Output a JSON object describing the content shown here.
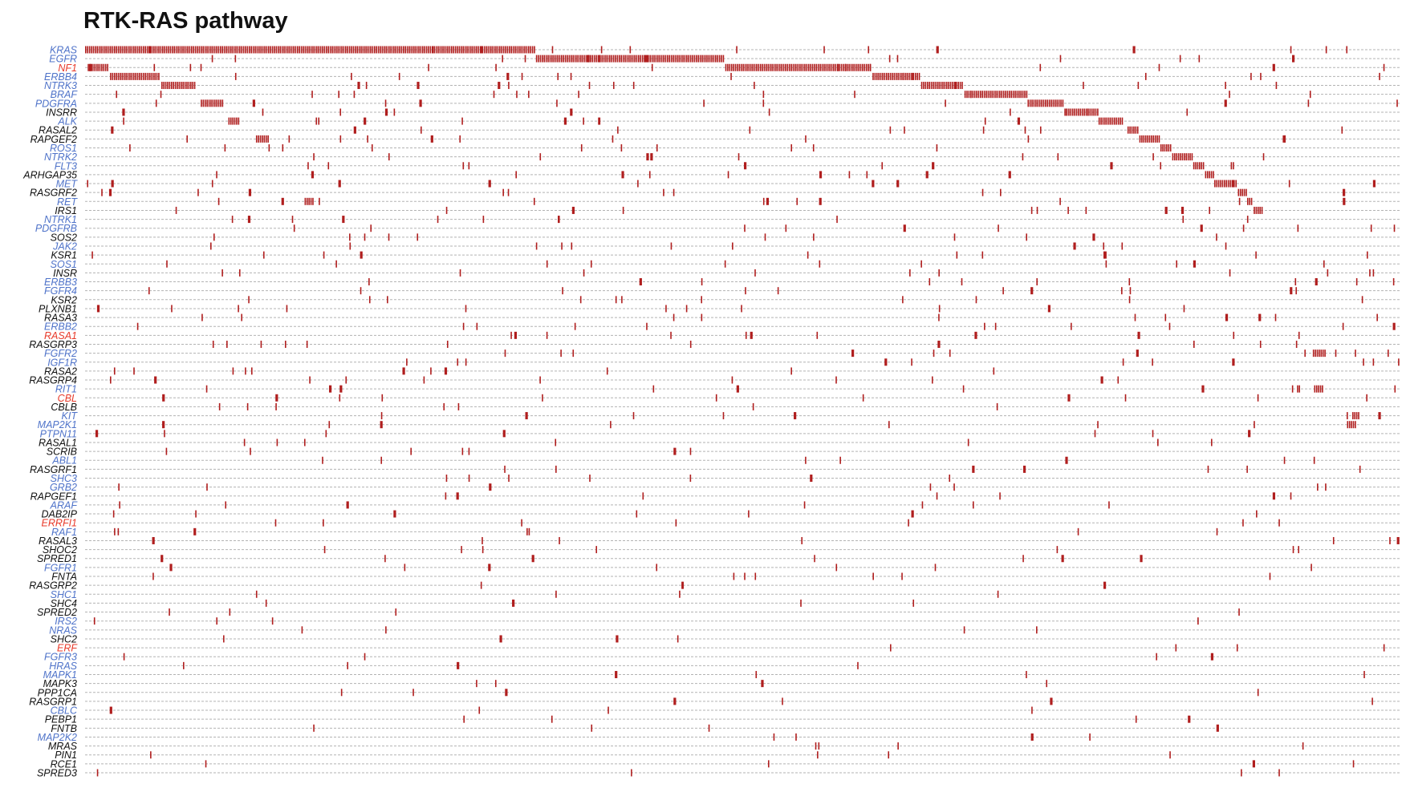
{
  "chart_data": {
    "type": "oncoprint",
    "title": "RTK-RAS pathway",
    "label_colors": {
      "oncogene": "#4f73c9",
      "tumor_suppressor": "#e83a2a",
      "other": "#111111",
      "mutation": "#b01e1e"
    },
    "genes": [
      {
        "name": "KRAS",
        "role": "oncogene"
      },
      {
        "name": "EGFR",
        "role": "oncogene"
      },
      {
        "name": "NF1",
        "role": "tumor_suppressor"
      },
      {
        "name": "ERBB4",
        "role": "oncogene"
      },
      {
        "name": "NTRK3",
        "role": "oncogene"
      },
      {
        "name": "BRAF",
        "role": "oncogene"
      },
      {
        "name": "PDGFRA",
        "role": "oncogene"
      },
      {
        "name": "INSRR",
        "role": "other"
      },
      {
        "name": "ALK",
        "role": "oncogene"
      },
      {
        "name": "RASAL2",
        "role": "other"
      },
      {
        "name": "RAPGEF2",
        "role": "other"
      },
      {
        "name": "ROS1",
        "role": "oncogene"
      },
      {
        "name": "NTRK2",
        "role": "oncogene"
      },
      {
        "name": "FLT3",
        "role": "oncogene"
      },
      {
        "name": "ARHGAP35",
        "role": "other"
      },
      {
        "name": "MET",
        "role": "oncogene"
      },
      {
        "name": "RASGRF2",
        "role": "other"
      },
      {
        "name": "RET",
        "role": "oncogene"
      },
      {
        "name": "IRS1",
        "role": "other"
      },
      {
        "name": "NTRK1",
        "role": "oncogene"
      },
      {
        "name": "PDGFRB",
        "role": "oncogene"
      },
      {
        "name": "SOS2",
        "role": "other"
      },
      {
        "name": "JAK2",
        "role": "oncogene"
      },
      {
        "name": "KSR1",
        "role": "other"
      },
      {
        "name": "SOS1",
        "role": "oncogene"
      },
      {
        "name": "INSR",
        "role": "other"
      },
      {
        "name": "ERBB3",
        "role": "oncogene"
      },
      {
        "name": "FGFR4",
        "role": "oncogene"
      },
      {
        "name": "KSR2",
        "role": "other"
      },
      {
        "name": "PLXNB1",
        "role": "other"
      },
      {
        "name": "RASA3",
        "role": "other"
      },
      {
        "name": "ERBB2",
        "role": "oncogene"
      },
      {
        "name": "RASA1",
        "role": "tumor_suppressor"
      },
      {
        "name": "RASGRP3",
        "role": "other"
      },
      {
        "name": "FGFR2",
        "role": "oncogene"
      },
      {
        "name": "IGF1R",
        "role": "oncogene"
      },
      {
        "name": "RASA2",
        "role": "other"
      },
      {
        "name": "RASGRP4",
        "role": "other"
      },
      {
        "name": "RIT1",
        "role": "oncogene"
      },
      {
        "name": "CBL",
        "role": "tumor_suppressor"
      },
      {
        "name": "CBLB",
        "role": "other"
      },
      {
        "name": "KIT",
        "role": "oncogene"
      },
      {
        "name": "MAP2K1",
        "role": "oncogene"
      },
      {
        "name": "PTPN11",
        "role": "oncogene"
      },
      {
        "name": "RASAL1",
        "role": "other"
      },
      {
        "name": "SCRIB",
        "role": "other"
      },
      {
        "name": "ABL1",
        "role": "oncogene"
      },
      {
        "name": "RASGRF1",
        "role": "other"
      },
      {
        "name": "SHC3",
        "role": "oncogene"
      },
      {
        "name": "GRB2",
        "role": "oncogene"
      },
      {
        "name": "RAPGEF1",
        "role": "other"
      },
      {
        "name": "ARAF",
        "role": "oncogene"
      },
      {
        "name": "DAB2IP",
        "role": "other"
      },
      {
        "name": "ERRFI1",
        "role": "tumor_suppressor"
      },
      {
        "name": "RAF1",
        "role": "oncogene"
      },
      {
        "name": "RASAL3",
        "role": "other"
      },
      {
        "name": "SHOC2",
        "role": "other"
      },
      {
        "name": "SPRED1",
        "role": "other"
      },
      {
        "name": "FGFR1",
        "role": "oncogene"
      },
      {
        "name": "FNTA",
        "role": "other"
      },
      {
        "name": "RASGRP2",
        "role": "other"
      },
      {
        "name": "SHC1",
        "role": "oncogene"
      },
      {
        "name": "SHC4",
        "role": "other"
      },
      {
        "name": "SPRED2",
        "role": "other"
      },
      {
        "name": "IRS2",
        "role": "oncogene"
      },
      {
        "name": "NRAS",
        "role": "oncogene"
      },
      {
        "name": "SHC2",
        "role": "other"
      },
      {
        "name": "ERF",
        "role": "tumor_suppressor"
      },
      {
        "name": "FGFR3",
        "role": "oncogene"
      },
      {
        "name": "HRAS",
        "role": "oncogene"
      },
      {
        "name": "MAPK1",
        "role": "oncogene"
      },
      {
        "name": "MAPK3",
        "role": "other"
      },
      {
        "name": "PPP1CA",
        "role": "other"
      },
      {
        "name": "RASGRP1",
        "role": "other"
      },
      {
        "name": "CBLC",
        "role": "oncogene"
      },
      {
        "name": "PEBP1",
        "role": "other"
      },
      {
        "name": "FNTB",
        "role": "other"
      },
      {
        "name": "MAP2K2",
        "role": "oncogene"
      },
      {
        "name": "MRAS",
        "role": "other"
      },
      {
        "name": "PIN1",
        "role": "other"
      },
      {
        "name": "RCE1",
        "role": "other"
      },
      {
        "name": "SPRED3",
        "role": "other"
      }
    ],
    "x_range": [
      0,
      1000
    ],
    "blocks": [
      {
        "gene": "KRAS",
        "start": 0,
        "end": 342
      },
      {
        "gene": "EGFR",
        "start": 343,
        "end": 486
      },
      {
        "gene": "NF1",
        "start": 487,
        "end": 598
      },
      {
        "gene": "NF1",
        "start": 2,
        "end": 18
      },
      {
        "gene": "ERBB4",
        "start": 19,
        "end": 57
      },
      {
        "gene": "ERBB4",
        "start": 599,
        "end": 635
      },
      {
        "gene": "NTRK3",
        "start": 58,
        "end": 83
      },
      {
        "gene": "NTRK3",
        "start": 636,
        "end": 668
      },
      {
        "gene": "BRAF",
        "start": 669,
        "end": 716
      },
      {
        "gene": "PDGFRA",
        "start": 88,
        "end": 105
      },
      {
        "gene": "PDGFRA",
        "start": 717,
        "end": 744
      },
      {
        "gene": "INSRR",
        "start": 745,
        "end": 770
      },
      {
        "gene": "ALK",
        "start": 109,
        "end": 117
      },
      {
        "gene": "ALK",
        "start": 771,
        "end": 790
      },
      {
        "gene": "RASAL2",
        "start": 793,
        "end": 801
      },
      {
        "gene": "RAPGEF2",
        "start": 130,
        "end": 139
      },
      {
        "gene": "RAPGEF2",
        "start": 802,
        "end": 817
      },
      {
        "gene": "ROS1",
        "start": 818,
        "end": 826
      },
      {
        "gene": "NTRK2",
        "start": 827,
        "end": 842
      },
      {
        "gene": "FLT3",
        "start": 843,
        "end": 851
      },
      {
        "gene": "ARHGAP35",
        "start": 852,
        "end": 858
      },
      {
        "gene": "MET",
        "start": 859,
        "end": 876
      },
      {
        "gene": "RASGRF2",
        "start": 877,
        "end": 883
      },
      {
        "gene": "RET",
        "start": 167,
        "end": 174
      },
      {
        "gene": "RET",
        "start": 884,
        "end": 888
      },
      {
        "gene": "IRS1",
        "start": 889,
        "end": 896
      },
      {
        "gene": "FGFR2",
        "start": 934,
        "end": 944
      },
      {
        "gene": "RIT1",
        "start": 935,
        "end": 942
      },
      {
        "gene": "KIT",
        "start": 964,
        "end": 969
      },
      {
        "gene": "MAP2K1",
        "start": 960,
        "end": 966
      }
    ],
    "mutation_density": "sparse"
  }
}
